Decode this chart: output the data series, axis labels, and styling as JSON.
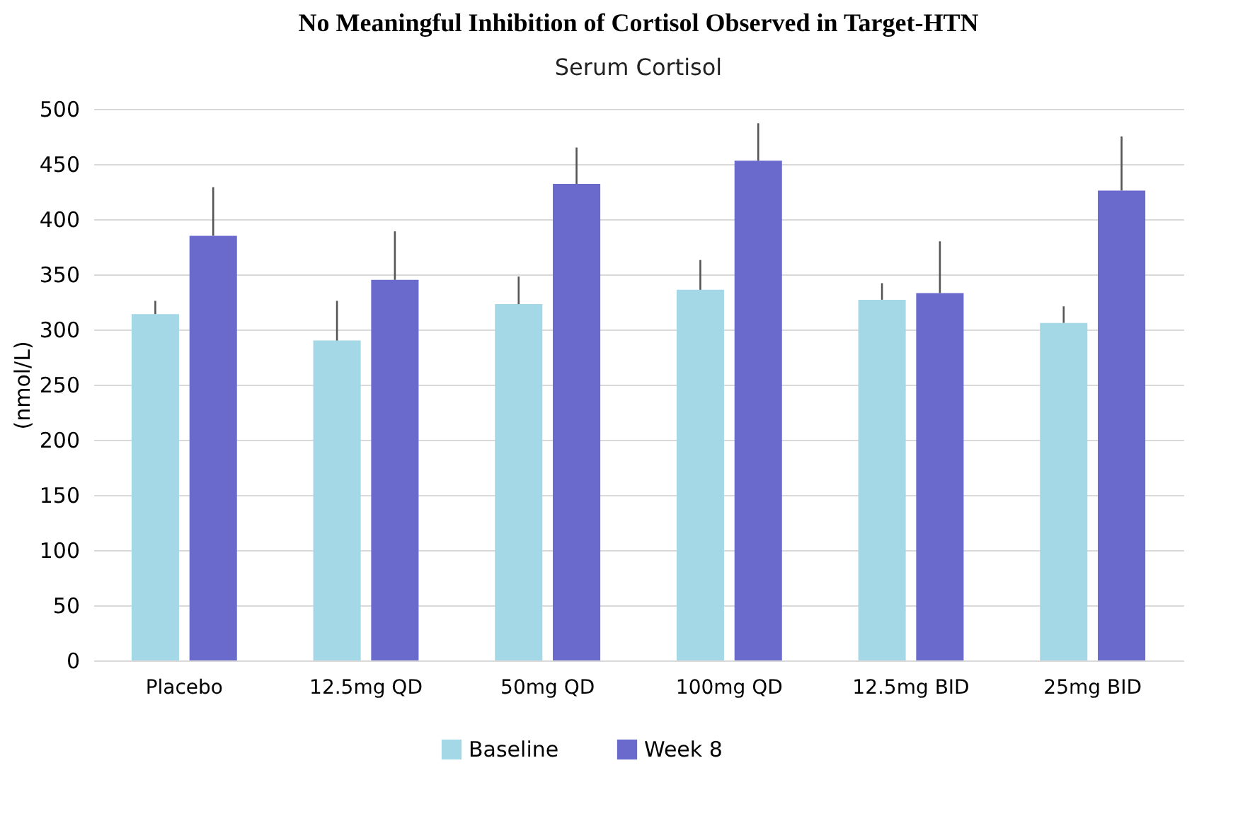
{
  "chart_data": {
    "type": "bar",
    "title": "No Meaningful Inhibition of Cortisol Observed in Target-HTN",
    "subtitle": "Serum Cortisol",
    "ylabel": "(nmol/L)",
    "categories": [
      "Placebo",
      "12.5mg QD",
      "50mg QD",
      "100mg QD",
      "12.5mg BID",
      "25mg BID"
    ],
    "series": [
      {
        "name": "Baseline",
        "color": "#a5d8e6",
        "values": [
          314,
          290,
          323,
          336,
          327,
          306
        ],
        "errors": [
          [
            314,
            326
          ],
          [
            290,
            326
          ],
          [
            323,
            348
          ],
          [
            336,
            363
          ],
          [
            327,
            342
          ],
          [
            306,
            321
          ]
        ]
      },
      {
        "name": "Week 8",
        "color": "#6a6acd",
        "values": [
          385,
          345,
          432,
          453,
          333,
          426
        ],
        "errors": [
          [
            385,
            429
          ],
          [
            345,
            389
          ],
          [
            432,
            465
          ],
          [
            453,
            487
          ],
          [
            333,
            380
          ],
          [
            426,
            475
          ]
        ]
      }
    ],
    "ylim": [
      0,
      500
    ],
    "yticks": [
      0,
      50,
      100,
      150,
      200,
      250,
      300,
      350,
      400,
      450,
      500
    ],
    "grid": "y",
    "legend": "bottom"
  }
}
